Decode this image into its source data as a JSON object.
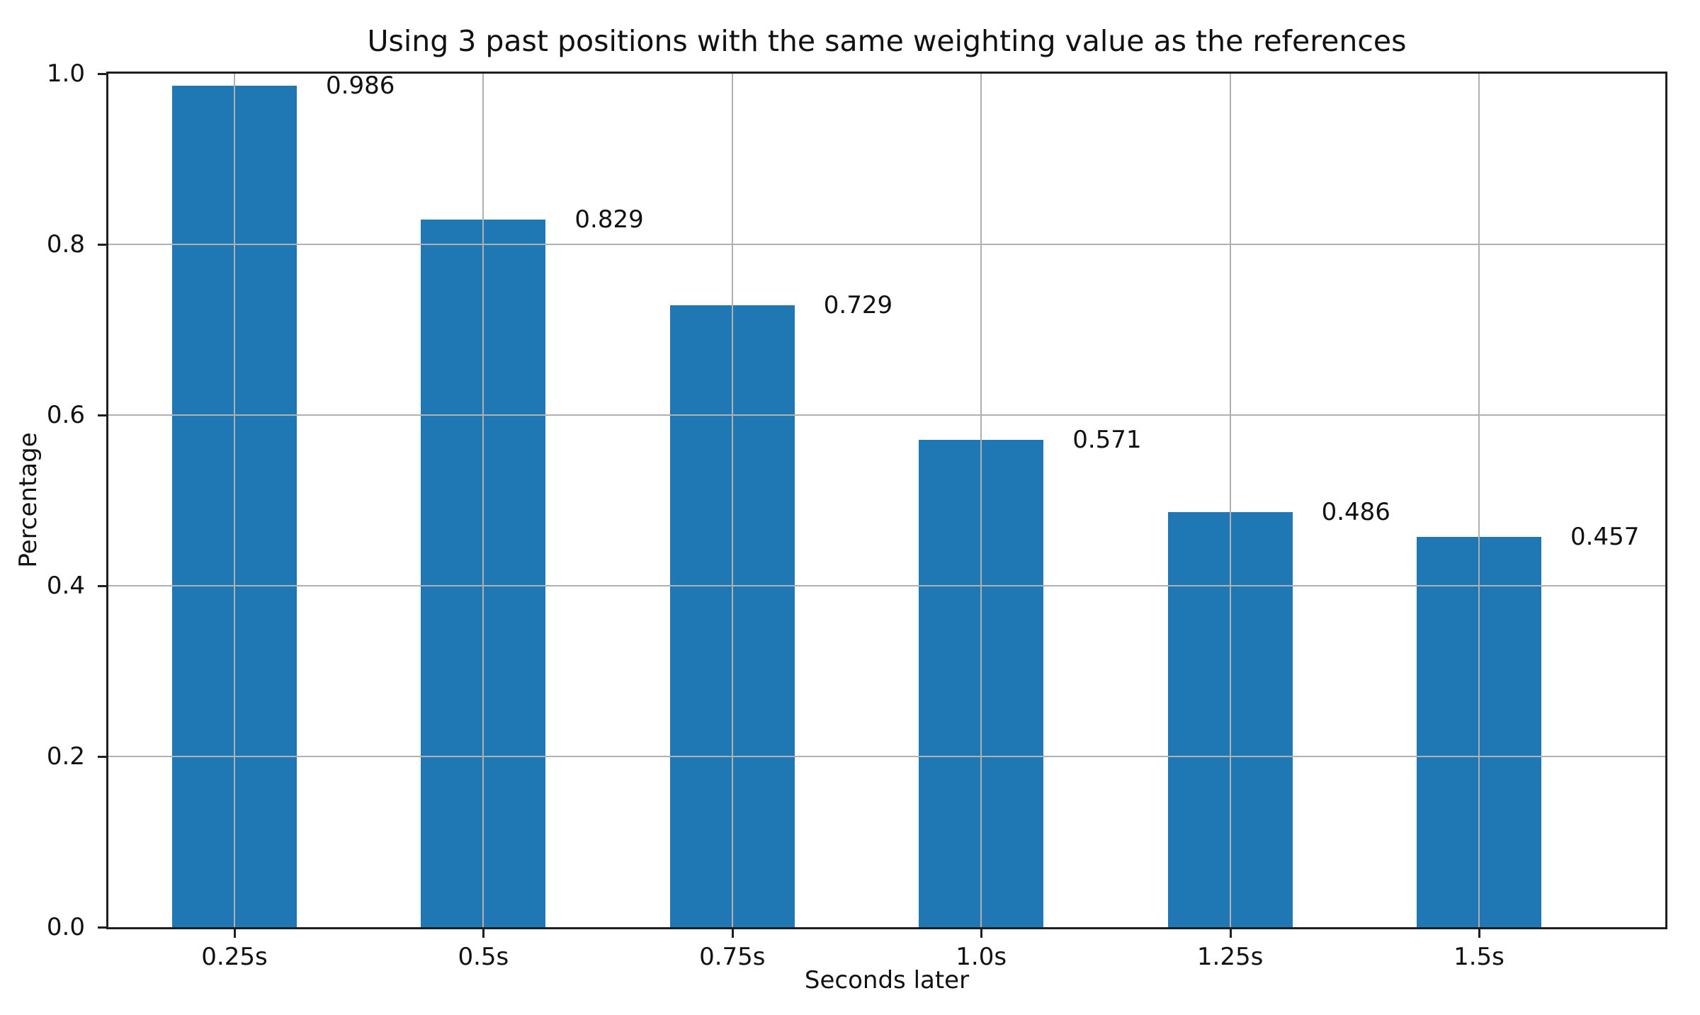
{
  "chart_data": {
    "type": "bar",
    "title": "Using 3 past positions with the same weighting value as the references",
    "xlabel": "Seconds later",
    "ylabel": "Percentage",
    "categories": [
      "0.25s",
      "0.5s",
      "0.75s",
      "1.0s",
      "1.25s",
      "1.5s"
    ],
    "values": [
      0.986,
      0.829,
      0.729,
      0.571,
      0.486,
      0.457
    ],
    "bar_value_labels": [
      "0.986",
      "0.829",
      "0.729",
      "0.571",
      "0.486",
      "0.457"
    ],
    "ylim": [
      0.0,
      1.0
    ],
    "yticks": [
      0.0,
      0.2,
      0.4,
      0.6,
      0.8,
      1.0
    ],
    "ytick_labels": [
      "0.0",
      "0.2",
      "0.4",
      "0.6",
      "0.8",
      "1.0"
    ],
    "grid": true,
    "grid_axes": "both",
    "legend": false,
    "colors": {
      "bar": "#1f77b4",
      "grid": "#b0b0b0",
      "spine": "#1f1f1f",
      "text": "#111111",
      "background": "#ffffff"
    }
  }
}
